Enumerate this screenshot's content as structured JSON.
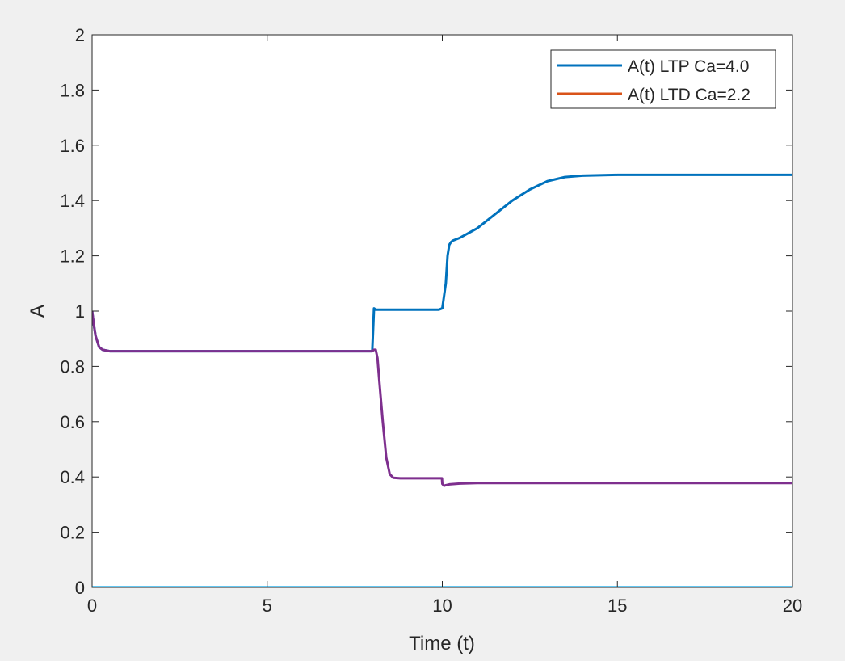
{
  "chart_data": {
    "type": "line",
    "title": "",
    "xlabel": "Time (t)",
    "ylabel": "A",
    "xlim": [
      0,
      20
    ],
    "ylim": [
      0,
      2
    ],
    "xticks": [
      0,
      5,
      10,
      15,
      20
    ],
    "yticks": [
      0,
      0.2,
      0.4,
      0.6,
      0.8,
      1,
      1.2,
      1.4,
      1.6,
      1.8,
      2
    ],
    "xtick_labels": [
      "0",
      "5",
      "10",
      "15",
      "20"
    ],
    "ytick_labels": [
      "0",
      "0.2",
      "0.4",
      "0.6",
      "0.8",
      "1",
      "1.2",
      "1.4",
      "1.6",
      "1.8",
      "2"
    ],
    "grid": false,
    "legend_position": "top-right",
    "series": [
      {
        "name": "A(t) LTP Ca=4.0",
        "color": "#0072BD",
        "x": [
          0,
          0.05,
          0.1,
          0.2,
          0.3,
          0.5,
          1,
          2,
          4,
          6,
          7.9,
          8.0,
          8.05,
          8.1,
          8.2,
          9,
          9.9,
          10.0,
          10.1,
          10.15,
          10.2,
          10.25,
          10.3,
          10.5,
          11,
          11.5,
          12,
          12.5,
          13,
          13.5,
          14,
          15,
          16,
          18,
          20
        ],
        "y": [
          1.0,
          0.95,
          0.91,
          0.87,
          0.86,
          0.855,
          0.855,
          0.855,
          0.855,
          0.855,
          0.855,
          0.855,
          1.01,
          1.005,
          1.005,
          1.005,
          1.005,
          1.01,
          1.1,
          1.2,
          1.24,
          1.25,
          1.255,
          1.265,
          1.3,
          1.35,
          1.4,
          1.44,
          1.47,
          1.485,
          1.49,
          1.493,
          1.493,
          1.493,
          1.493
        ]
      },
      {
        "name": "A(t) LTD Ca=2.2",
        "color": "#D95319",
        "x": [
          0,
          20
        ],
        "y": [
          0,
          0
        ]
      },
      {
        "name": "",
        "color": "#7E2F8E",
        "x": [
          0,
          0.05,
          0.1,
          0.2,
          0.3,
          0.5,
          1,
          2,
          4,
          6,
          8.0,
          8.05,
          8.1,
          8.15,
          8.2,
          8.3,
          8.4,
          8.5,
          8.6,
          8.8,
          9,
          9.5,
          9.99,
          10.0,
          10.05,
          10.1,
          10.2,
          10.5,
          11,
          12,
          14,
          16,
          18,
          20
        ],
        "y": [
          1.0,
          0.95,
          0.91,
          0.87,
          0.86,
          0.855,
          0.855,
          0.855,
          0.855,
          0.855,
          0.855,
          0.86,
          0.86,
          0.83,
          0.75,
          0.6,
          0.47,
          0.41,
          0.397,
          0.395,
          0.395,
          0.395,
          0.395,
          0.375,
          0.368,
          0.37,
          0.373,
          0.376,
          0.378,
          0.378,
          0.378,
          0.378,
          0.378,
          0.378
        ]
      },
      {
        "name": "",
        "color": "#4DBEEE",
        "x": [
          0,
          20
        ],
        "y": [
          0.001,
          0.001
        ]
      }
    ]
  }
}
